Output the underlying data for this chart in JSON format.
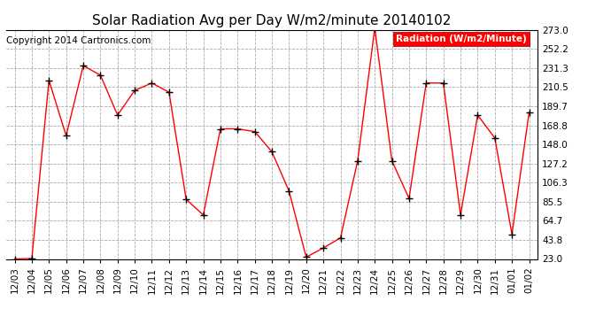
{
  "title": "Solar Radiation Avg per Day W/m2/minute 20140102",
  "copyright": "Copyright 2014 Cartronics.com",
  "legend_label": "Radiation (W/m2/Minute)",
  "dates": [
    "12/03",
    "12/04",
    "12/05",
    "12/06",
    "12/07",
    "12/08",
    "12/09",
    "12/10",
    "12/11",
    "12/12",
    "12/13",
    "12/14",
    "12/15",
    "12/16",
    "12/17",
    "12/18",
    "12/19",
    "12/20",
    "12/21",
    "12/22",
    "12/23",
    "12/24",
    "12/25",
    "12/26",
    "12/27",
    "12/28",
    "12/29",
    "12/30",
    "12/31",
    "01/01",
    "01/02"
  ],
  "values": [
    23.0,
    23.5,
    218.0,
    157.5,
    234.0,
    223.5,
    180.0,
    207.0,
    215.0,
    205.0,
    88.0,
    71.0,
    165.0,
    165.0,
    162.0,
    140.0,
    97.0,
    25.0,
    35.0,
    46.0,
    130.0,
    275.0,
    130.0,
    89.0,
    215.0,
    215.0,
    71.0,
    180.0,
    155.0,
    50.0,
    183.0
  ],
  "ymin": 23.0,
  "ymax": 273.0,
  "line_color": "red",
  "marker_color": "black",
  "background_color": "white",
  "grid_color": "#aaaaaa",
  "yticks": [
    23.0,
    43.8,
    64.7,
    85.5,
    106.3,
    127.2,
    148.0,
    168.8,
    189.7,
    210.5,
    231.3,
    252.2,
    273.0
  ],
  "legend_bg": "red",
  "legend_fg": "white",
  "title_fontsize": 11,
  "tick_fontsize": 7.5,
  "copyright_fontsize": 7.5
}
